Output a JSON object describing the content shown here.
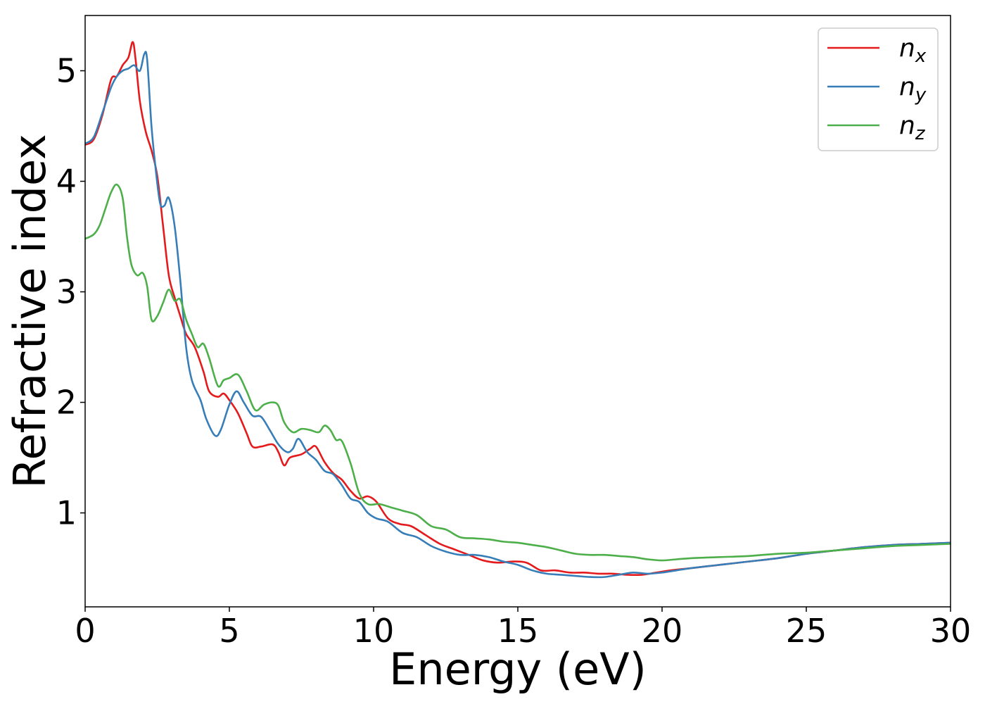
{
  "chart_data": {
    "type": "line",
    "xlabel": "Energy (eV)",
    "ylabel": "Refractive index",
    "xlim": [
      0,
      30
    ],
    "ylim": [
      0.15,
      5.5
    ],
    "xticks": [
      0,
      5,
      10,
      15,
      20,
      25,
      30
    ],
    "yticks": [
      1,
      2,
      3,
      4,
      5
    ],
    "grid": false,
    "legend_position": "top-right",
    "series": [
      {
        "name": "n",
        "subscript": "x",
        "color": "#e41a1c",
        "points": [
          [
            0,
            4.33
          ],
          [
            0.3,
            4.38
          ],
          [
            0.6,
            4.6
          ],
          [
            0.9,
            4.92
          ],
          [
            1.1,
            4.95
          ],
          [
            1.3,
            5.05
          ],
          [
            1.5,
            5.12
          ],
          [
            1.65,
            5.26
          ],
          [
            1.75,
            5.1
          ],
          [
            1.9,
            4.72
          ],
          [
            2.1,
            4.45
          ],
          [
            2.3,
            4.28
          ],
          [
            2.5,
            4.05
          ],
          [
            2.7,
            3.6
          ],
          [
            2.9,
            3.15
          ],
          [
            3.1,
            2.95
          ],
          [
            3.3,
            2.78
          ],
          [
            3.5,
            2.62
          ],
          [
            3.8,
            2.5
          ],
          [
            4.1,
            2.28
          ],
          [
            4.3,
            2.1
          ],
          [
            4.6,
            2.05
          ],
          [
            4.8,
            2.08
          ],
          [
            5.0,
            2.02
          ],
          [
            5.3,
            1.9
          ],
          [
            5.6,
            1.72
          ],
          [
            5.8,
            1.6
          ],
          [
            6.1,
            1.6
          ],
          [
            6.5,
            1.62
          ],
          [
            6.7,
            1.55
          ],
          [
            6.9,
            1.43
          ],
          [
            7.1,
            1.5
          ],
          [
            7.5,
            1.53
          ],
          [
            7.8,
            1.58
          ],
          [
            8.0,
            1.6
          ],
          [
            8.3,
            1.46
          ],
          [
            8.6,
            1.36
          ],
          [
            8.9,
            1.3
          ],
          [
            9.2,
            1.2
          ],
          [
            9.5,
            1.13
          ],
          [
            9.8,
            1.15
          ],
          [
            10.1,
            1.1
          ],
          [
            10.5,
            0.95
          ],
          [
            10.9,
            0.9
          ],
          [
            11.3,
            0.88
          ],
          [
            11.8,
            0.8
          ],
          [
            12.3,
            0.72
          ],
          [
            12.8,
            0.67
          ],
          [
            13.3,
            0.62
          ],
          [
            13.8,
            0.57
          ],
          [
            14.3,
            0.55
          ],
          [
            14.8,
            0.56
          ],
          [
            15.3,
            0.55
          ],
          [
            15.8,
            0.48
          ],
          [
            16.3,
            0.48
          ],
          [
            16.8,
            0.46
          ],
          [
            17.3,
            0.46
          ],
          [
            17.8,
            0.45
          ],
          [
            18.3,
            0.45
          ],
          [
            18.8,
            0.44
          ],
          [
            19.3,
            0.44
          ],
          [
            19.8,
            0.46
          ],
          [
            20.3,
            0.48
          ],
          [
            21,
            0.5
          ],
          [
            22,
            0.53
          ],
          [
            23,
            0.56
          ],
          [
            24,
            0.59
          ],
          [
            25,
            0.63
          ],
          [
            26,
            0.66
          ],
          [
            27,
            0.69
          ],
          [
            28,
            0.71
          ],
          [
            29,
            0.72
          ],
          [
            30,
            0.73
          ]
        ]
      },
      {
        "name": "n",
        "subscript": "y",
        "color": "#377eb8",
        "points": [
          [
            0,
            4.34
          ],
          [
            0.3,
            4.4
          ],
          [
            0.6,
            4.62
          ],
          [
            0.9,
            4.85
          ],
          [
            1.1,
            4.95
          ],
          [
            1.3,
            5.0
          ],
          [
            1.5,
            5.02
          ],
          [
            1.7,
            5.05
          ],
          [
            1.9,
            5.0
          ],
          [
            2.05,
            5.15
          ],
          [
            2.15,
            5.1
          ],
          [
            2.3,
            4.5
          ],
          [
            2.45,
            4.1
          ],
          [
            2.6,
            3.8
          ],
          [
            2.75,
            3.78
          ],
          [
            2.9,
            3.85
          ],
          [
            3.1,
            3.6
          ],
          [
            3.3,
            3.1
          ],
          [
            3.5,
            2.5
          ],
          [
            3.7,
            2.2
          ],
          [
            4.0,
            2.02
          ],
          [
            4.2,
            1.85
          ],
          [
            4.5,
            1.7
          ],
          [
            4.7,
            1.75
          ],
          [
            5.0,
            1.98
          ],
          [
            5.25,
            2.1
          ],
          [
            5.5,
            2.0
          ],
          [
            5.8,
            1.88
          ],
          [
            6.1,
            1.87
          ],
          [
            6.4,
            1.75
          ],
          [
            6.7,
            1.62
          ],
          [
            7.0,
            1.55
          ],
          [
            7.2,
            1.58
          ],
          [
            7.4,
            1.67
          ],
          [
            7.7,
            1.55
          ],
          [
            8.0,
            1.48
          ],
          [
            8.3,
            1.38
          ],
          [
            8.6,
            1.35
          ],
          [
            8.9,
            1.25
          ],
          [
            9.2,
            1.13
          ],
          [
            9.5,
            1.1
          ],
          [
            9.8,
            1.0
          ],
          [
            10.1,
            0.95
          ],
          [
            10.5,
            0.92
          ],
          [
            11.0,
            0.82
          ],
          [
            11.5,
            0.78
          ],
          [
            12.0,
            0.7
          ],
          [
            12.5,
            0.65
          ],
          [
            13.0,
            0.62
          ],
          [
            13.5,
            0.62
          ],
          [
            14.0,
            0.6
          ],
          [
            14.5,
            0.56
          ],
          [
            15.0,
            0.53
          ],
          [
            15.5,
            0.48
          ],
          [
            16.0,
            0.45
          ],
          [
            16.5,
            0.44
          ],
          [
            17.0,
            0.43
          ],
          [
            17.5,
            0.42
          ],
          [
            18.0,
            0.42
          ],
          [
            18.5,
            0.44
          ],
          [
            19.0,
            0.46
          ],
          [
            19.5,
            0.45
          ],
          [
            20.0,
            0.46
          ],
          [
            20.5,
            0.48
          ],
          [
            21,
            0.5
          ],
          [
            22,
            0.53
          ],
          [
            23,
            0.56
          ],
          [
            24,
            0.59
          ],
          [
            25,
            0.63
          ],
          [
            26,
            0.66
          ],
          [
            27,
            0.69
          ],
          [
            28,
            0.71
          ],
          [
            29,
            0.72
          ],
          [
            30,
            0.73
          ]
        ]
      },
      {
        "name": "n",
        "subscript": "z",
        "color": "#4daf4a",
        "points": [
          [
            0,
            3.48
          ],
          [
            0.3,
            3.52
          ],
          [
            0.5,
            3.6
          ],
          [
            0.7,
            3.75
          ],
          [
            0.9,
            3.9
          ],
          [
            1.1,
            3.97
          ],
          [
            1.3,
            3.85
          ],
          [
            1.45,
            3.5
          ],
          [
            1.6,
            3.25
          ],
          [
            1.8,
            3.15
          ],
          [
            2.0,
            3.17
          ],
          [
            2.15,
            3.05
          ],
          [
            2.3,
            2.75
          ],
          [
            2.5,
            2.78
          ],
          [
            2.7,
            2.9
          ],
          [
            2.9,
            3.02
          ],
          [
            3.1,
            2.92
          ],
          [
            3.3,
            2.93
          ],
          [
            3.5,
            2.75
          ],
          [
            3.7,
            2.62
          ],
          [
            3.9,
            2.5
          ],
          [
            4.1,
            2.53
          ],
          [
            4.3,
            2.4
          ],
          [
            4.6,
            2.15
          ],
          [
            4.8,
            2.2
          ],
          [
            5.0,
            2.22
          ],
          [
            5.3,
            2.25
          ],
          [
            5.6,
            2.1
          ],
          [
            5.9,
            1.93
          ],
          [
            6.2,
            1.98
          ],
          [
            6.5,
            2.0
          ],
          [
            6.7,
            1.97
          ],
          [
            6.9,
            1.82
          ],
          [
            7.2,
            1.73
          ],
          [
            7.5,
            1.76
          ],
          [
            7.8,
            1.75
          ],
          [
            8.1,
            1.73
          ],
          [
            8.3,
            1.79
          ],
          [
            8.5,
            1.75
          ],
          [
            8.7,
            1.66
          ],
          [
            8.9,
            1.65
          ],
          [
            9.2,
            1.45
          ],
          [
            9.5,
            1.18
          ],
          [
            9.8,
            1.08
          ],
          [
            10.2,
            1.08
          ],
          [
            10.6,
            1.05
          ],
          [
            11.0,
            1.02
          ],
          [
            11.5,
            0.98
          ],
          [
            12.0,
            0.88
          ],
          [
            12.5,
            0.85
          ],
          [
            13.0,
            0.78
          ],
          [
            13.5,
            0.77
          ],
          [
            14.0,
            0.76
          ],
          [
            14.5,
            0.74
          ],
          [
            15.0,
            0.73
          ],
          [
            15.5,
            0.71
          ],
          [
            16.0,
            0.69
          ],
          [
            16.5,
            0.66
          ],
          [
            17.0,
            0.63
          ],
          [
            17.5,
            0.62
          ],
          [
            18.0,
            0.62
          ],
          [
            18.5,
            0.61
          ],
          [
            19.0,
            0.6
          ],
          [
            19.5,
            0.58
          ],
          [
            20.0,
            0.57
          ],
          [
            20.5,
            0.58
          ],
          [
            21,
            0.59
          ],
          [
            22,
            0.6
          ],
          [
            23,
            0.61
          ],
          [
            24,
            0.63
          ],
          [
            25,
            0.64
          ],
          [
            26,
            0.66
          ],
          [
            27,
            0.68
          ],
          [
            28,
            0.7
          ],
          [
            29,
            0.71
          ],
          [
            30,
            0.72
          ]
        ]
      }
    ]
  }
}
